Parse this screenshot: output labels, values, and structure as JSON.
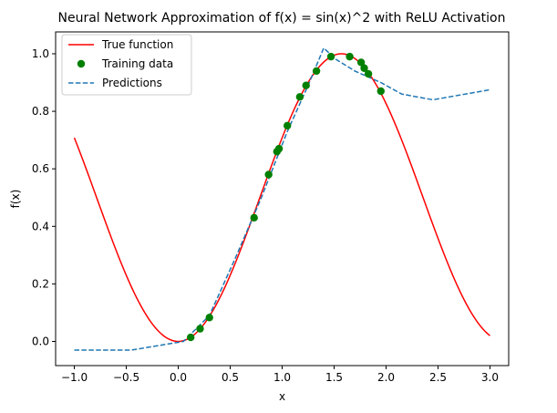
{
  "chart_data": {
    "type": "line",
    "title": "Neural Network Approximation of f(x) = sin(x)^2 with ReLU Activation",
    "xlabel": "x",
    "ylabel": "f(x)",
    "xlim": [
      -1.18,
      3.18
    ],
    "ylim": [
      -0.084,
      1.076
    ],
    "xticks": [
      "−1.0",
      "−0.5",
      "0.0",
      "0.5",
      "1.0",
      "1.5",
      "2.0",
      "2.5",
      "3.0"
    ],
    "xtick_values": [
      -1.0,
      -0.5,
      0.0,
      0.5,
      1.0,
      1.5,
      2.0,
      2.5,
      3.0
    ],
    "yticks": [
      "0.0",
      "0.2",
      "0.4",
      "0.6",
      "0.8",
      "1.0"
    ],
    "ytick_values": [
      0.0,
      0.2,
      0.4,
      0.6,
      0.8,
      1.0
    ],
    "grid": false,
    "legend_position": "upper-left",
    "series": [
      {
        "name": "True function",
        "kind": "function",
        "function": "sin(x)^2",
        "x_range": [
          -1.0,
          3.0
        ],
        "color": "#ff0000",
        "line_style": "solid"
      },
      {
        "name": "Training data",
        "kind": "scatter",
        "color": "#008000",
        "x": [
          0.12,
          0.21,
          0.3,
          0.73,
          0.87,
          0.95,
          0.97,
          1.05,
          1.17,
          1.23,
          1.33,
          1.47,
          1.65,
          1.76,
          1.79,
          1.83,
          1.95
        ],
        "y": [
          0.014,
          0.044,
          0.083,
          0.43,
          0.58,
          0.66,
          0.67,
          0.75,
          0.85,
          0.89,
          0.94,
          0.99,
          0.99,
          0.97,
          0.95,
          0.93,
          0.87
        ]
      },
      {
        "name": "Predictions",
        "kind": "line",
        "color": "#1f77b4",
        "line_style": "dashed",
        "x": [
          -1.0,
          -0.45,
          0.05,
          0.3,
          0.55,
          0.8,
          1.05,
          1.25,
          1.4,
          1.52,
          1.7,
          1.95,
          2.15,
          2.45,
          3.0
        ],
        "y": [
          -0.03,
          -0.03,
          0.0,
          0.09,
          0.29,
          0.5,
          0.73,
          0.89,
          1.02,
          0.98,
          0.94,
          0.9,
          0.86,
          0.84,
          0.875
        ]
      }
    ]
  }
}
